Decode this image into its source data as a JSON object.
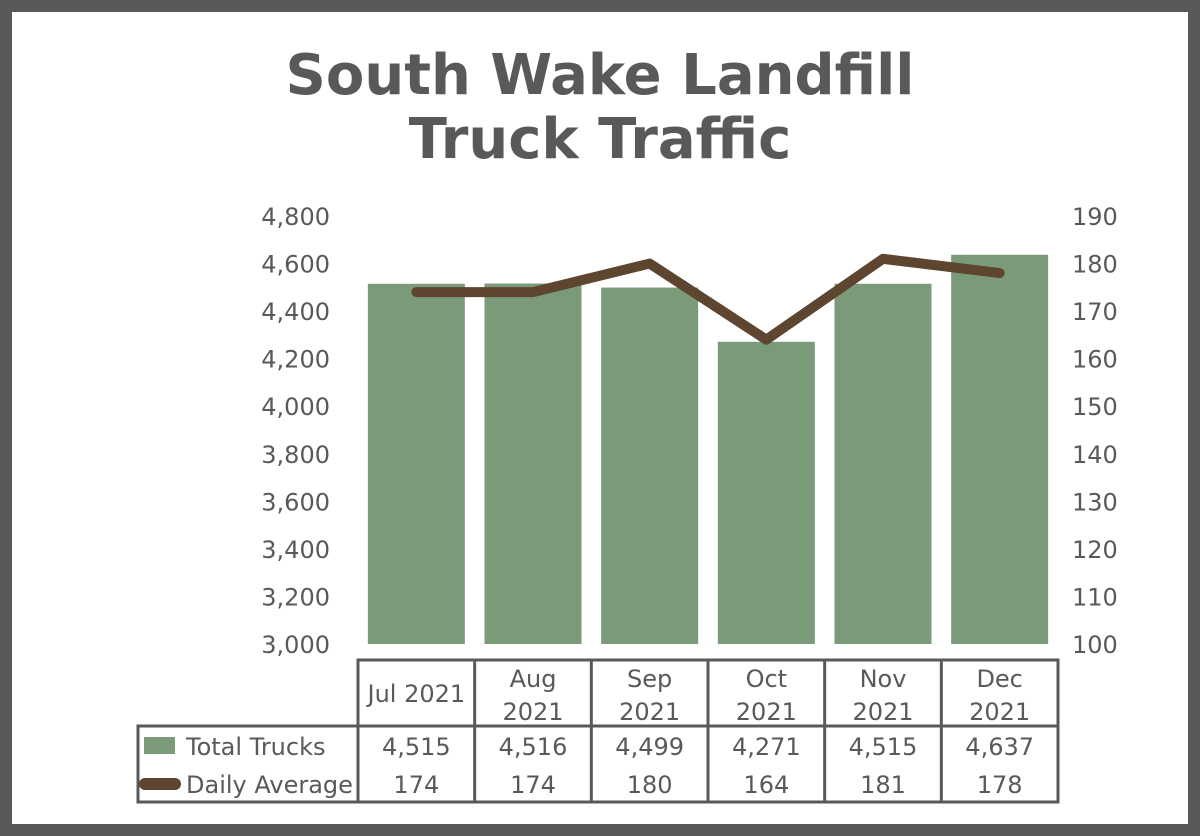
{
  "colors": {
    "bar": "#7a9a7a",
    "line": "#5e4530",
    "text": "#595959",
    "frame": "#595959"
  },
  "chart_data": {
    "type": "bar+line",
    "title_lines": [
      "South Wake Landfill",
      "Truck Traffic"
    ],
    "categories": [
      [
        "Jul 2021"
      ],
      [
        "Aug",
        "2021"
      ],
      [
        "Sep",
        "2021"
      ],
      [
        "Oct",
        "2021"
      ],
      [
        "Nov",
        "2021"
      ],
      [
        "Dec",
        "2021"
      ]
    ],
    "series": [
      {
        "name": "Total Trucks",
        "type": "bar",
        "axis": "left",
        "values": [
          4515,
          4516,
          4499,
          4271,
          4515,
          4637
        ],
        "labels": [
          "4,515",
          "4,516",
          "4,499",
          "4,271",
          "4,515",
          "4,637"
        ]
      },
      {
        "name": "Daily Average",
        "type": "line",
        "axis": "right",
        "values": [
          174,
          174,
          180,
          164,
          181,
          178
        ],
        "labels": [
          "174",
          "174",
          "180",
          "164",
          "181",
          "178"
        ]
      }
    ],
    "left_axis": {
      "ylim": [
        3000,
        4800
      ],
      "ticks": [
        "3,000",
        "3,200",
        "3,400",
        "3,600",
        "3,800",
        "4,000",
        "4,200",
        "4,400",
        "4,600",
        "4,800"
      ]
    },
    "right_axis": {
      "ylim": [
        100,
        190
      ],
      "ticks": [
        "100",
        "110",
        "120",
        "130",
        "140",
        "150",
        "160",
        "170",
        "180",
        "190"
      ]
    },
    "grid": false,
    "legend": "data-table"
  }
}
